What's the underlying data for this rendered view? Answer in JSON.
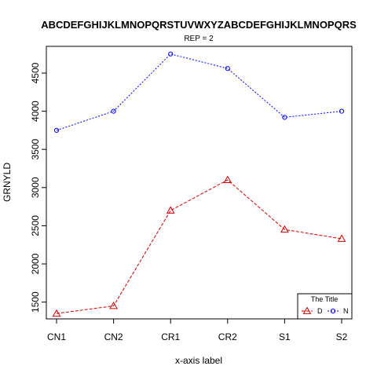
{
  "chart_data": {
    "type": "line",
    "title": "ABCDEFGHIJKLMNOPQRSTUVWXYZABCDEFGHIJKLMNOPQRS",
    "subtitle": "REP = 2",
    "xlabel": "x-axis label",
    "ylabel": "GRNYLD",
    "categories": [
      "CN1",
      "CN2",
      "CR1",
      "CR2",
      "S1",
      "S2"
    ],
    "ylim": [
      1280,
      4850
    ],
    "yticks": [
      1500,
      2000,
      2500,
      3000,
      3500,
      4000,
      4500
    ],
    "grid": false,
    "legend": {
      "title": "The Title",
      "placement": "bottom-right"
    },
    "series": [
      {
        "name": "D",
        "color": "#cc0000",
        "marker": "triangle",
        "line": "dashed",
        "values": [
          1350,
          1450,
          2700,
          3100,
          2450,
          2330
        ]
      },
      {
        "name": "N",
        "color": "#0000ff",
        "marker": "circle",
        "line": "dotted",
        "values": [
          3750,
          4000,
          4750,
          4560,
          3920,
          4000
        ]
      }
    ]
  }
}
